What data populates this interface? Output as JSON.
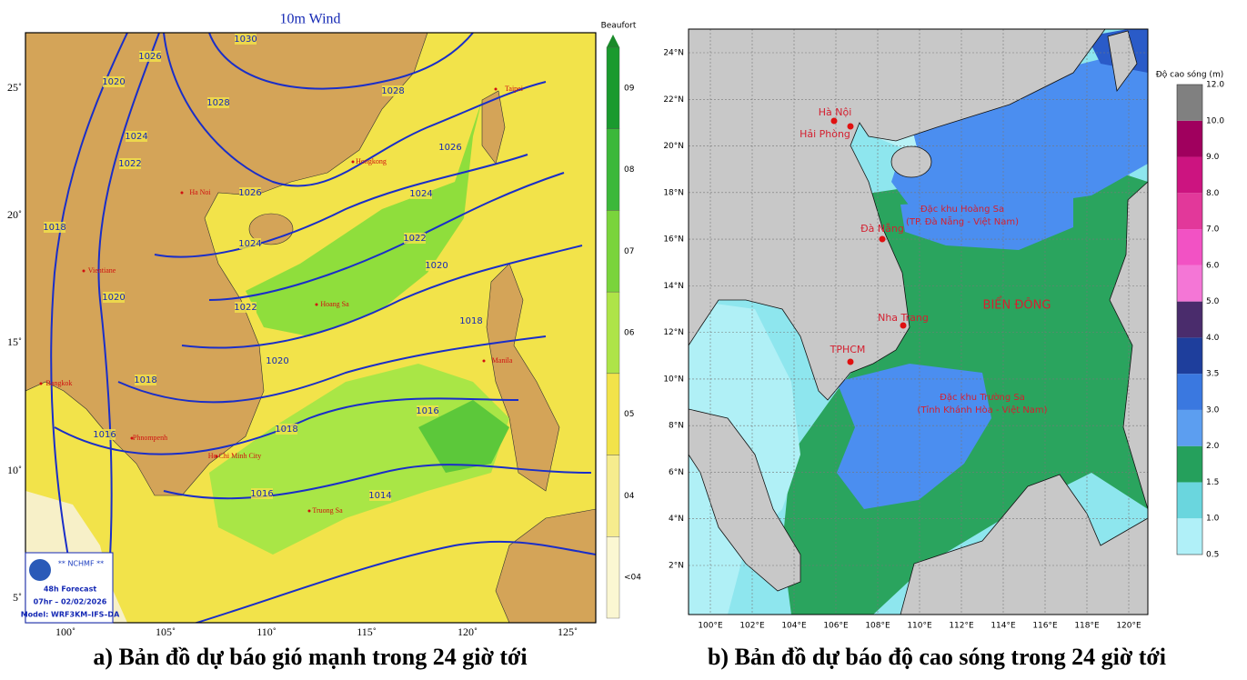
{
  "left_panel": {
    "title": "10m Wind",
    "colorbar": {
      "title": "Beaufort",
      "levels": [
        {
          "label": "09",
          "color": "#1a9a2e"
        },
        {
          "label": "08",
          "color": "#3cb83a"
        },
        {
          "label": "07",
          "color": "#7ad43c"
        },
        {
          "label": "06",
          "color": "#aee448"
        },
        {
          "label": "05",
          "color": "#f2e34a"
        },
        {
          "label": "04",
          "color": "#f6ec8e"
        },
        {
          "label": "<04",
          "color": "#fbf7d2"
        }
      ]
    },
    "lat_labels": [
      "25˚",
      "20˚",
      "15˚",
      "10˚",
      "5˚"
    ],
    "lon_labels": [
      "100˚",
      "105˚",
      "110˚",
      "115˚",
      "120˚",
      "125˚"
    ],
    "isobar_labels": [
      "1030",
      "1026",
      "1028",
      "1028",
      "1020",
      "1024",
      "1022",
      "1026",
      "1026",
      "1024",
      "1024",
      "1022",
      "1020",
      "1022",
      "1018",
      "1020",
      "1018",
      "1020",
      "1018",
      "1016",
      "1018",
      "1016",
      "1016",
      "1014"
    ],
    "places": [
      "Taipei",
      "Hongkong",
      "Ha Noi",
      "Hoang Sa",
      "Vientiane",
      "Manila",
      "Bangkok",
      "Phnompenh",
      "Ho Chi Minh City",
      "Truong Sa"
    ],
    "logo": {
      "org": "** NCHMF **",
      "forecast": "48h Forecast",
      "time": "07hr – 02/02/2026",
      "model": "Model: WRF3KM–IFS–DA"
    },
    "caption": "a) Bản đồ dự báo gió mạnh trong 24 giờ tới"
  },
  "right_panel": {
    "colorbar": {
      "title": "Độ cao sóng (m)",
      "ticks": [
        "0.5",
        "1.0",
        "1.5",
        "2.0",
        "3.0",
        "3.5",
        "4.0",
        "5.0",
        "6.0",
        "7.0",
        "8.0",
        "9.0",
        "10.0",
        "12.0"
      ],
      "colors": [
        "#b0f0f8",
        "#6ad6de",
        "#25a05c",
        "#5c9ef0",
        "#3a78e0",
        "#1e3e9c",
        "#4a2c6c",
        "#f476d6",
        "#f252c4",
        "#e2389a",
        "#cc1480",
        "#a0005e",
        "#808080"
      ]
    },
    "lat_labels": [
      "24°N",
      "22°N",
      "20°N",
      "18°N",
      "16°N",
      "14°N",
      "12°N",
      "10°N",
      "8°N",
      "6°N",
      "4°N",
      "2°N"
    ],
    "lon_labels": [
      "100°E",
      "102°E",
      "104°E",
      "106°E",
      "108°E",
      "110°E",
      "112°E",
      "114°E",
      "116°E",
      "118°E",
      "120°E"
    ],
    "places": [
      "Hà Nội",
      "Hải Phòng",
      "Đà Nẵng",
      "Nha Trang",
      "TPHCM",
      "Đặc khu Hoàng Sa",
      "(TP. Đà Nẵng - Việt Nam)",
      "BIỂN ĐÔNG",
      "Đặc khu Trường Sa",
      "(Tỉnh Khánh Hòa - Việt Nam)"
    ],
    "caption": "b) Bản đồ dự báo độ cao sóng trong 24 giờ tới"
  }
}
